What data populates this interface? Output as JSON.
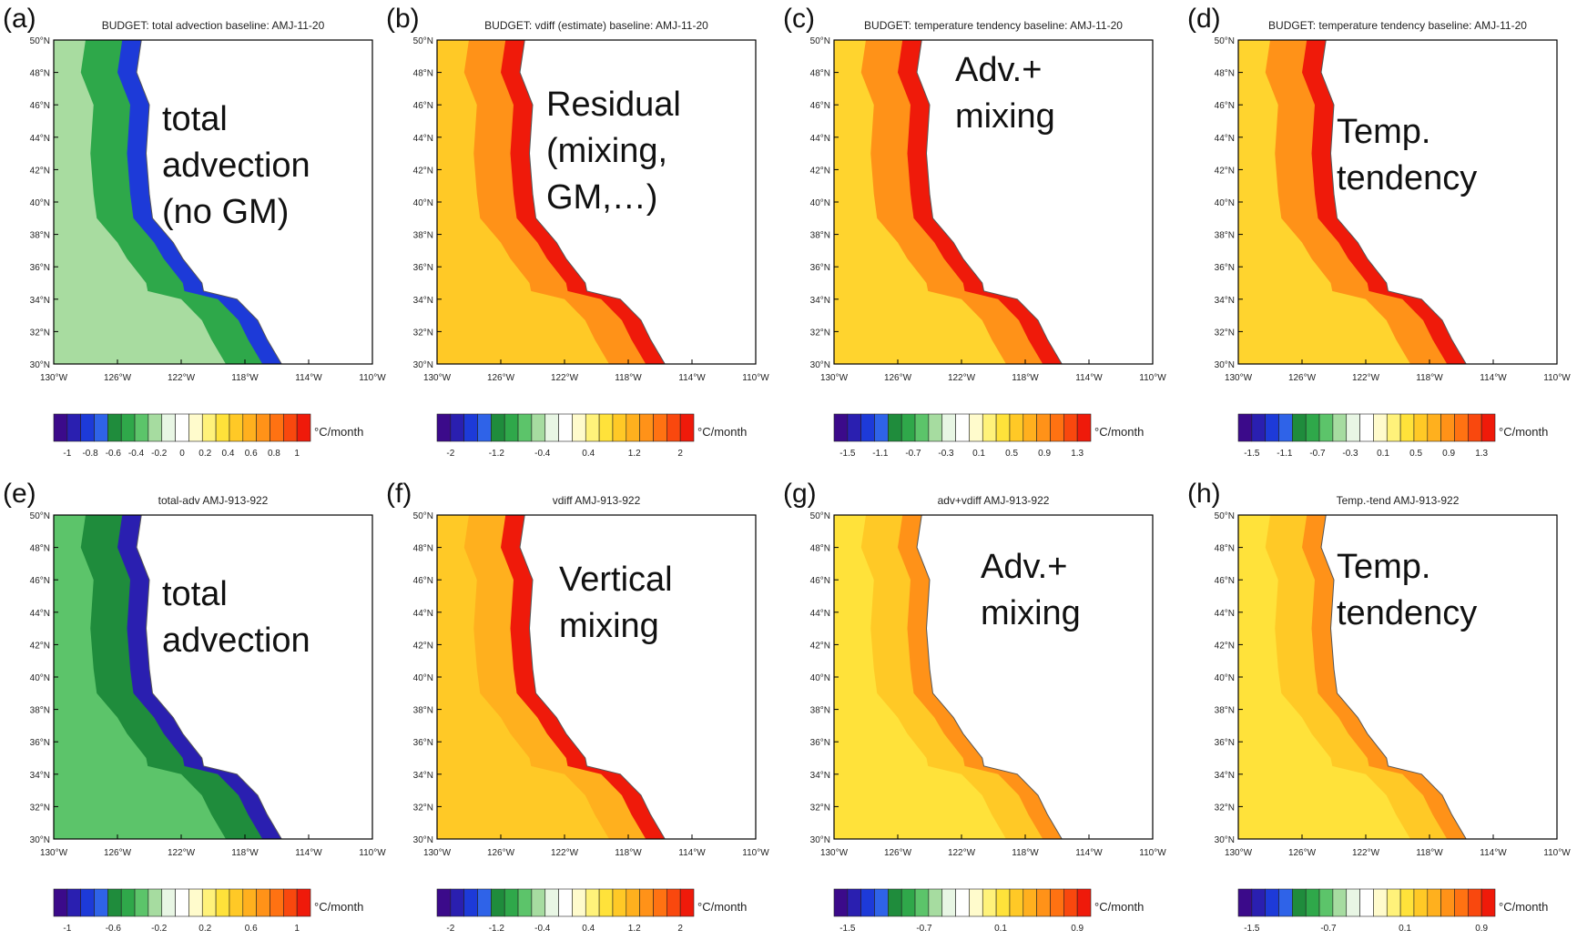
{
  "map_axes": {
    "lat_labels": [
      "50°N",
      "48°N",
      "46°N",
      "44°N",
      "42°N",
      "40°N",
      "38°N",
      "36°N",
      "34°N",
      "32°N",
      "30°N"
    ],
    "lon_labels": [
      "130°W",
      "126°W",
      "122°W",
      "118°W",
      "114°W",
      "110°W"
    ]
  },
  "colorbar_palette": [
    "#3b0a8a",
    "#2a1fb0",
    "#1d3ad8",
    "#2f63e8",
    "#1f8c3c",
    "#2fa84a",
    "#5cc46a",
    "#a6dca0",
    "#e8f6e4",
    "#ffffff",
    "#fffbcc",
    "#fff27a",
    "#ffe23a",
    "#ffc926",
    "#ffb01e",
    "#ff9218",
    "#ff7212",
    "#f9480e",
    "#ef1a0a"
  ],
  "panels": [
    {
      "letter": "(a)",
      "title": "BUDGET: total advection baseline: AMJ-11-20",
      "overlay": [
        "total",
        "advection",
        "(no GM)"
      ],
      "colorbar_ticks": [
        "-1",
        "-0.8",
        "-0.6",
        "-0.4",
        "-0.2",
        "0",
        "0.2",
        "0.4",
        "0.6",
        "0.8",
        "1"
      ],
      "unit": "°C/month",
      "field_colors": [
        "#a8dca0",
        "#2ea84a",
        "#1d3ad8"
      ]
    },
    {
      "letter": "(b)",
      "title": "BUDGET: vdiff (estimate) baseline: AMJ-11-20",
      "overlay": [
        "Residual",
        "(mixing,",
        "GM,…)"
      ],
      "colorbar_ticks": [
        "-2",
        "-1.2",
        "-0.4",
        "0.4",
        "1.2",
        "2"
      ],
      "unit": "°C/month",
      "field_colors": [
        "#ffc926",
        "#ff9218",
        "#ef1a0a"
      ]
    },
    {
      "letter": "(c)",
      "title": "BUDGET: temperature tendency baseline: AMJ-11-20",
      "overlay": [
        "Adv.+",
        "mixing"
      ],
      "colorbar_ticks": [
        "-1.5",
        "-1.1",
        "-0.7",
        "-0.3",
        "0.1",
        "0.5",
        "0.9",
        "1.3"
      ],
      "unit": "°C/month",
      "field_colors": [
        "#ffd42e",
        "#ff9218",
        "#ef1a0a"
      ]
    },
    {
      "letter": "(d)",
      "title": "BUDGET: temperature tendency baseline: AMJ-11-20",
      "overlay": [
        "Temp.",
        "tendency"
      ],
      "colorbar_ticks": [
        "-1.5",
        "-1.1",
        "-0.7",
        "-0.3",
        "0.1",
        "0.5",
        "0.9",
        "1.3"
      ],
      "unit": "°C/month",
      "field_colors": [
        "#ffd42e",
        "#ff9218",
        "#ef1a0a"
      ]
    },
    {
      "letter": "(e)",
      "title": "total-adv AMJ-913-922",
      "overlay": [
        "total",
        "advection"
      ],
      "colorbar_ticks": [
        "-1",
        "-0.6",
        "-0.2",
        "0.2",
        "0.6",
        "1"
      ],
      "unit": "°C/month",
      "field_colors": [
        "#5cc46a",
        "#1f8c3c",
        "#2a1fb0"
      ]
    },
    {
      "letter": "(f)",
      "title": "vdiff AMJ-913-922",
      "overlay": [
        "Vertical",
        "mixing"
      ],
      "colorbar_ticks": [
        "-2",
        "-1.2",
        "-0.4",
        "0.4",
        "1.2",
        "2"
      ],
      "unit": "°C/month",
      "field_colors": [
        "#ffc926",
        "#ffb01e",
        "#ef1a0a"
      ]
    },
    {
      "letter": "(g)",
      "title": "adv+vdiff AMJ-913-922",
      "overlay": [
        "Adv.+",
        "mixing"
      ],
      "colorbar_ticks": [
        "-1.5",
        "-0.7",
        "0.1",
        "0.9"
      ],
      "unit": "°C/month",
      "field_colors": [
        "#ffe23a",
        "#ffc926",
        "#ff9218"
      ]
    },
    {
      "letter": "(h)",
      "title": "Temp.-tend AMJ-913-922",
      "overlay": [
        "Temp.",
        "tendency"
      ],
      "colorbar_ticks": [
        "-1.5",
        "-0.7",
        "0.1",
        "0.9"
      ],
      "unit": "°C/month",
      "field_colors": [
        "#ffe23a",
        "#ffc926",
        "#ff9218"
      ]
    }
  ]
}
